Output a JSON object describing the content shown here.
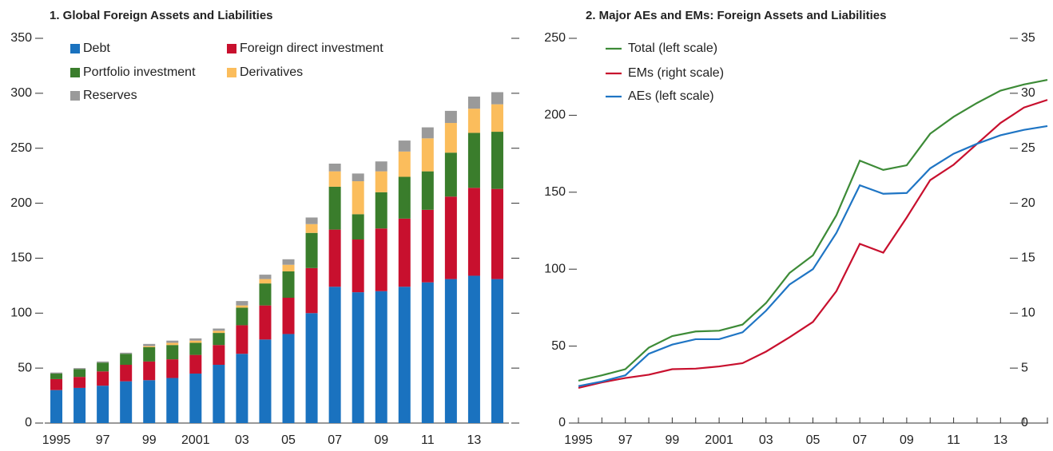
{
  "chart_data": [
    {
      "type": "bar",
      "stacked": true,
      "title": "1. Global Foreign Assets and Liabilities",
      "categories": [
        "1995",
        null,
        "97",
        null,
        "99",
        null,
        "2001",
        null,
        "03",
        null,
        "05",
        null,
        "07",
        null,
        "09",
        null,
        "11",
        null,
        "13",
        null
      ],
      "series": [
        {
          "name": "Debt",
          "color": "#1a72bf",
          "values": [
            30,
            32,
            34,
            38,
            39,
            41,
            45,
            53,
            63,
            76,
            81,
            100,
            124,
            119,
            120,
            124,
            128,
            131,
            134,
            131
          ]
        },
        {
          "name": "Foreign direct investment",
          "color": "#c8102e",
          "values": [
            10,
            10,
            13,
            15,
            17,
            17,
            17,
            18,
            26,
            31,
            33,
            41,
            52,
            48,
            57,
            62,
            66,
            75,
            80,
            82
          ]
        },
        {
          "name": "Portfolio investment",
          "color": "#3a7d2c",
          "values": [
            5,
            7,
            8,
            10,
            13,
            13,
            11,
            11,
            16,
            20,
            24,
            32,
            39,
            23,
            33,
            38,
            35,
            40,
            50,
            52
          ]
        },
        {
          "name": "Derivatives",
          "color": "#fbbd5c",
          "values": [
            0,
            0,
            0,
            0,
            1,
            2,
            2,
            2,
            2,
            4,
            6,
            8,
            14,
            30,
            19,
            23,
            30,
            27,
            22,
            25
          ]
        },
        {
          "name": "Reserves",
          "color": "#9a9a9a",
          "values": [
            1,
            1,
            1,
            1,
            2,
            2,
            2,
            2,
            4,
            4,
            5,
            6,
            7,
            7,
            9,
            10,
            10,
            11,
            11,
            11
          ]
        }
      ],
      "ylim": [
        0,
        350
      ],
      "yticks": [
        0,
        50,
        100,
        150,
        200,
        250,
        300,
        350
      ]
    },
    {
      "type": "line",
      "title": "2. Major AEs and EMs: Foreign Assets and Liabilities",
      "categories": [
        "1995",
        null,
        "97",
        null,
        "99",
        null,
        "2001",
        null,
        "03",
        null,
        "05",
        null,
        "07",
        null,
        "09",
        null,
        "11",
        null,
        "13",
        null,
        null
      ],
      "series": [
        {
          "name": "Total (left scale)",
          "color": "#3d8b37",
          "values": [
            27.5,
            31,
            35,
            49,
            56.5,
            59.5,
            60,
            64,
            78,
            97.5,
            109,
            135,
            170.5,
            164.5,
            167.5,
            188,
            199,
            208,
            216,
            220,
            223
          ]
        },
        {
          "name": "EMs (right scale)",
          "color": "#c8102e",
          "axis": "y2",
          "values": [
            3.2,
            3.7,
            4.1,
            4.4,
            4.9,
            4.95,
            5.15,
            5.45,
            6.5,
            7.8,
            9.2,
            12,
            16.3,
            15.5,
            18.7,
            22.1,
            23.5,
            25.4,
            27.3,
            28.7,
            29.4
          ]
        },
        {
          "name": "AEs (left scale)",
          "color": "#1f75c4",
          "values": [
            24,
            27,
            31,
            45,
            51,
            54.5,
            54.5,
            59,
            73,
            90,
            100,
            123.5,
            154.5,
            149,
            149.5,
            165.5,
            175,
            181.5,
            187,
            190.5,
            193
          ]
        }
      ],
      "ylim": [
        0,
        250
      ],
      "yticks": [
        0,
        50,
        100,
        150,
        200,
        250
      ],
      "y2lim": [
        0,
        35
      ],
      "y2ticks": [
        0,
        5,
        10,
        15,
        20,
        25,
        30,
        35
      ]
    }
  ]
}
